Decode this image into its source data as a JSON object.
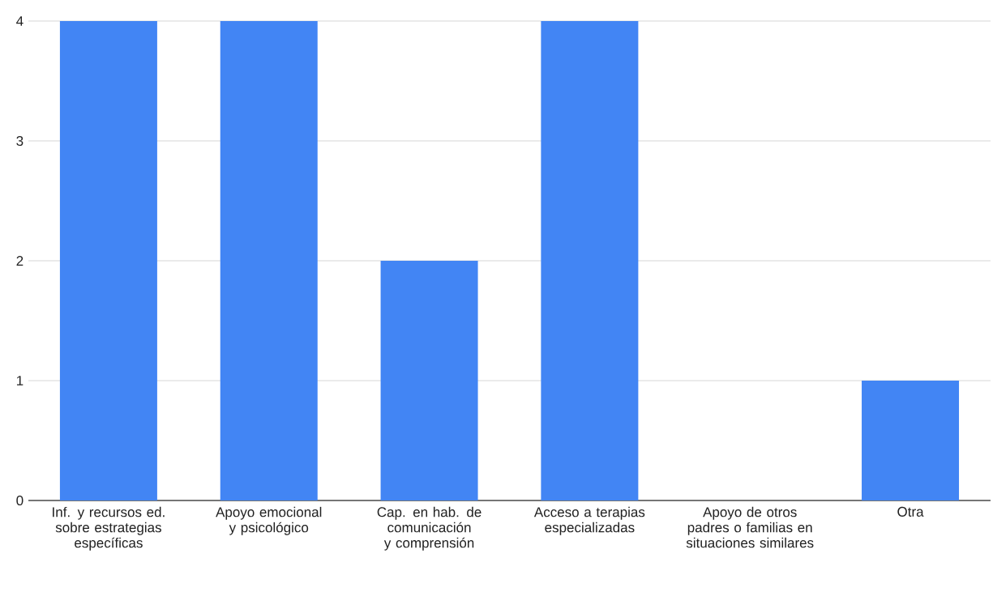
{
  "chart_data": {
    "type": "bar",
    "categories": [
      "Inf. y recursos ed. sobre estrategias específicas",
      "Apoyo emocional y psicológico",
      "Cap. en hab. de comunicación y comprensión",
      "Acceso a terapias especializadas",
      "Apoyo de otros padres o familias en situaciones similares",
      "Otra"
    ],
    "values": [
      4,
      4,
      2,
      4,
      0,
      1
    ],
    "color": "#4285f4",
    "ylim": [
      0,
      4
    ],
    "yticks": [
      0,
      1,
      2,
      3,
      4
    ],
    "grid": "y"
  }
}
